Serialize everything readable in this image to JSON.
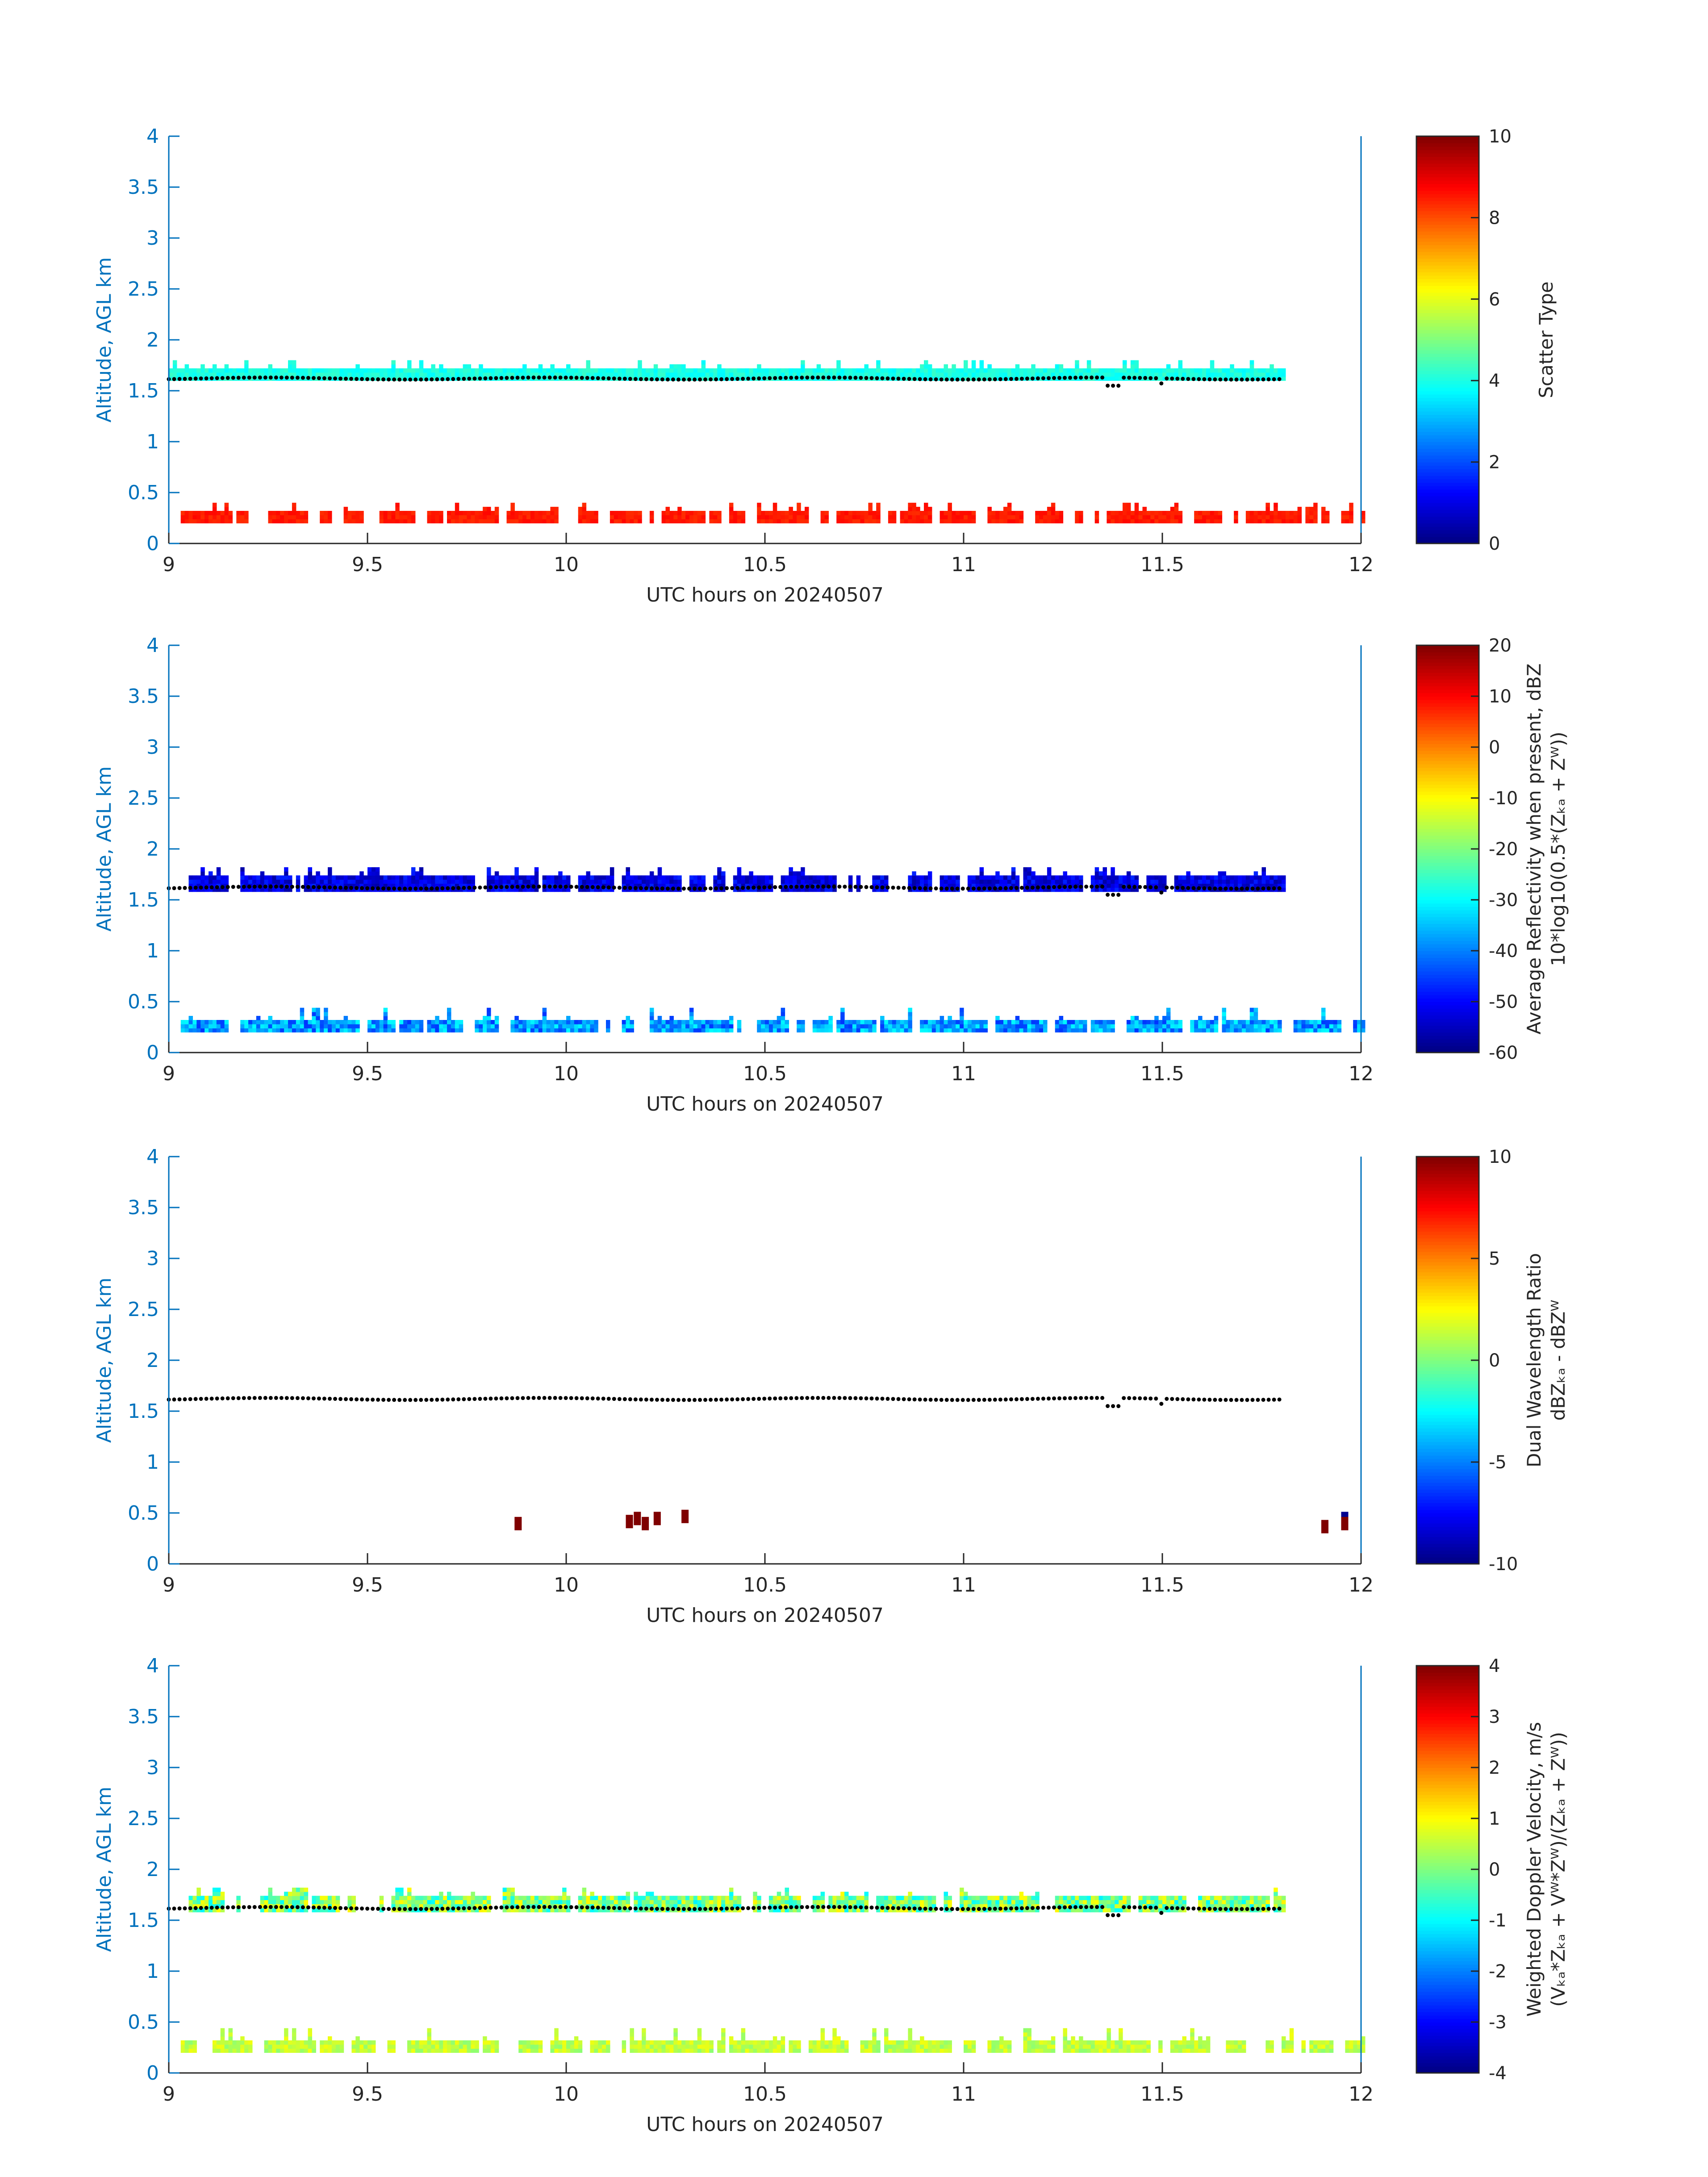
{
  "chart_data": [
    {
      "type": "heatmap",
      "panel": "scatter-type",
      "xlabel": "UTC hours on 20240507",
      "ylabel": "Altitude, AGL km",
      "xlim": [
        9,
        12
      ],
      "ylim": [
        0,
        4
      ],
      "xticks": [
        "9",
        "9.5",
        "10",
        "10.5",
        "11",
        "11.5",
        "12"
      ],
      "yticks": [
        "0",
        "0.5",
        "1",
        "1.5",
        "2",
        "2.5",
        "3",
        "3.5",
        "4"
      ],
      "colorbar": {
        "label_lines": [
          "Scatter Type"
        ],
        "range": [
          0,
          10
        ],
        "ticks": [
          "0",
          "2",
          "4",
          "6",
          "8",
          "10"
        ]
      },
      "bands": [
        {
          "x_start": 9.0,
          "x_end": 11.8,
          "y_base": 1.6,
          "y_top": 1.72,
          "value": 4,
          "noise": 0.3,
          "gap_prob": 0.0
        },
        {
          "x_start": 9.03,
          "x_end": 12.0,
          "y_base": 0.2,
          "y_top": 0.3,
          "value": 8.5,
          "noise": 0.2,
          "gap_prob": 0.12
        }
      ],
      "cloud_base": {
        "x_start": 9.0,
        "x_end": 11.8,
        "y": 1.62
      }
    },
    {
      "type": "heatmap",
      "panel": "reflectivity",
      "xlabel": "UTC hours on 20240507",
      "ylabel": "Altitude, AGL km",
      "xlim": [
        9,
        12
      ],
      "ylim": [
        0,
        4
      ],
      "xticks": [
        "9",
        "9.5",
        "10",
        "10.5",
        "11",
        "11.5",
        "12"
      ],
      "yticks": [
        "0",
        "0.5",
        "1",
        "1.5",
        "2",
        "2.5",
        "3",
        "3.5",
        "4"
      ],
      "colorbar": {
        "label_lines": [
          "Average Reflectivity when present, dBZ",
          "10*log10(0.5*(Zₖₐ + Zᵂ))"
        ],
        "range": [
          -60,
          20
        ],
        "ticks": [
          "-60",
          "-50",
          "-40",
          "-30",
          "-20",
          "-10",
          "0",
          "10",
          "20"
        ]
      },
      "bands": [
        {
          "x_start": 9.05,
          "x_end": 11.8,
          "y_base": 1.58,
          "y_top": 1.72,
          "value": -52,
          "noise": 5,
          "gap_prob": 0.08
        },
        {
          "x_start": 9.03,
          "x_end": 12.0,
          "y_base": 0.2,
          "y_top": 0.32,
          "value": -38,
          "noise": 8,
          "gap_prob": 0.1
        }
      ],
      "cloud_base": {
        "x_start": 9.0,
        "x_end": 11.8,
        "y": 1.62
      }
    },
    {
      "type": "heatmap",
      "panel": "dual-wavelength-ratio",
      "xlabel": "UTC hours on 20240507",
      "ylabel": "Altitude, AGL km",
      "xlim": [
        9,
        12
      ],
      "ylim": [
        0,
        4
      ],
      "xticks": [
        "9",
        "9.5",
        "10",
        "10.5",
        "11",
        "11.5",
        "12"
      ],
      "yticks": [
        "0",
        "0.5",
        "1",
        "1.5",
        "2",
        "2.5",
        "3",
        "3.5",
        "4"
      ],
      "colorbar": {
        "label_lines": [
          "Dual Wavelength Ratio",
          "dBZₖₐ - dBZᵂ"
        ],
        "range": [
          -10,
          10
        ],
        "ticks": [
          "-10",
          "-5",
          "0",
          "5",
          "10"
        ]
      },
      "points": [
        {
          "x": 9.87,
          "y": 0.33,
          "value": 10
        },
        {
          "x": 10.15,
          "y": 0.35,
          "value": 10
        },
        {
          "x": 10.17,
          "y": 0.38,
          "value": 10
        },
        {
          "x": 10.19,
          "y": 0.33,
          "value": 10
        },
        {
          "x": 10.22,
          "y": 0.38,
          "value": 10
        },
        {
          "x": 10.29,
          "y": 0.4,
          "value": 10
        },
        {
          "x": 11.9,
          "y": 0.3,
          "value": 10
        },
        {
          "x": 11.95,
          "y": 0.38,
          "value": -10
        },
        {
          "x": 11.95,
          "y": 0.33,
          "value": 10
        }
      ],
      "cloud_base": {
        "x_start": 9.0,
        "x_end": 11.8,
        "y": 1.62
      }
    },
    {
      "type": "heatmap",
      "panel": "doppler-velocity",
      "xlabel": "UTC hours on 20240507",
      "ylabel": "Altitude, AGL km",
      "xlim": [
        9,
        12
      ],
      "ylim": [
        0,
        4
      ],
      "xticks": [
        "9",
        "9.5",
        "10",
        "10.5",
        "11",
        "11.5",
        "12"
      ],
      "yticks": [
        "0",
        "0.5",
        "1",
        "1.5",
        "2",
        "2.5",
        "3",
        "3.5",
        "4"
      ],
      "colorbar": {
        "label_lines": [
          "Weighted Doppler Velocity, m/s",
          "(Vₖₐ*Zₖₐ + Vᵂ*Zᵂ)/(Zₖₐ + Zᵂ))"
        ],
        "range": [
          -4,
          4
        ],
        "ticks": [
          "-4",
          "-3",
          "-2",
          "-1",
          "0",
          "1",
          "2",
          "3",
          "4"
        ]
      },
      "bands": [
        {
          "x_start": 9.05,
          "x_end": 11.8,
          "y_base": 1.58,
          "y_top": 1.72,
          "value": 0,
          "noise": 1.1,
          "gap_prob": 0.07
        },
        {
          "x_start": 9.03,
          "x_end": 12.0,
          "y_base": 0.2,
          "y_top": 0.32,
          "value": 0.5,
          "noise": 0.4,
          "gap_prob": 0.1
        }
      ],
      "cloud_base": {
        "x_start": 9.0,
        "x_end": 11.8,
        "y": 1.62
      }
    }
  ]
}
